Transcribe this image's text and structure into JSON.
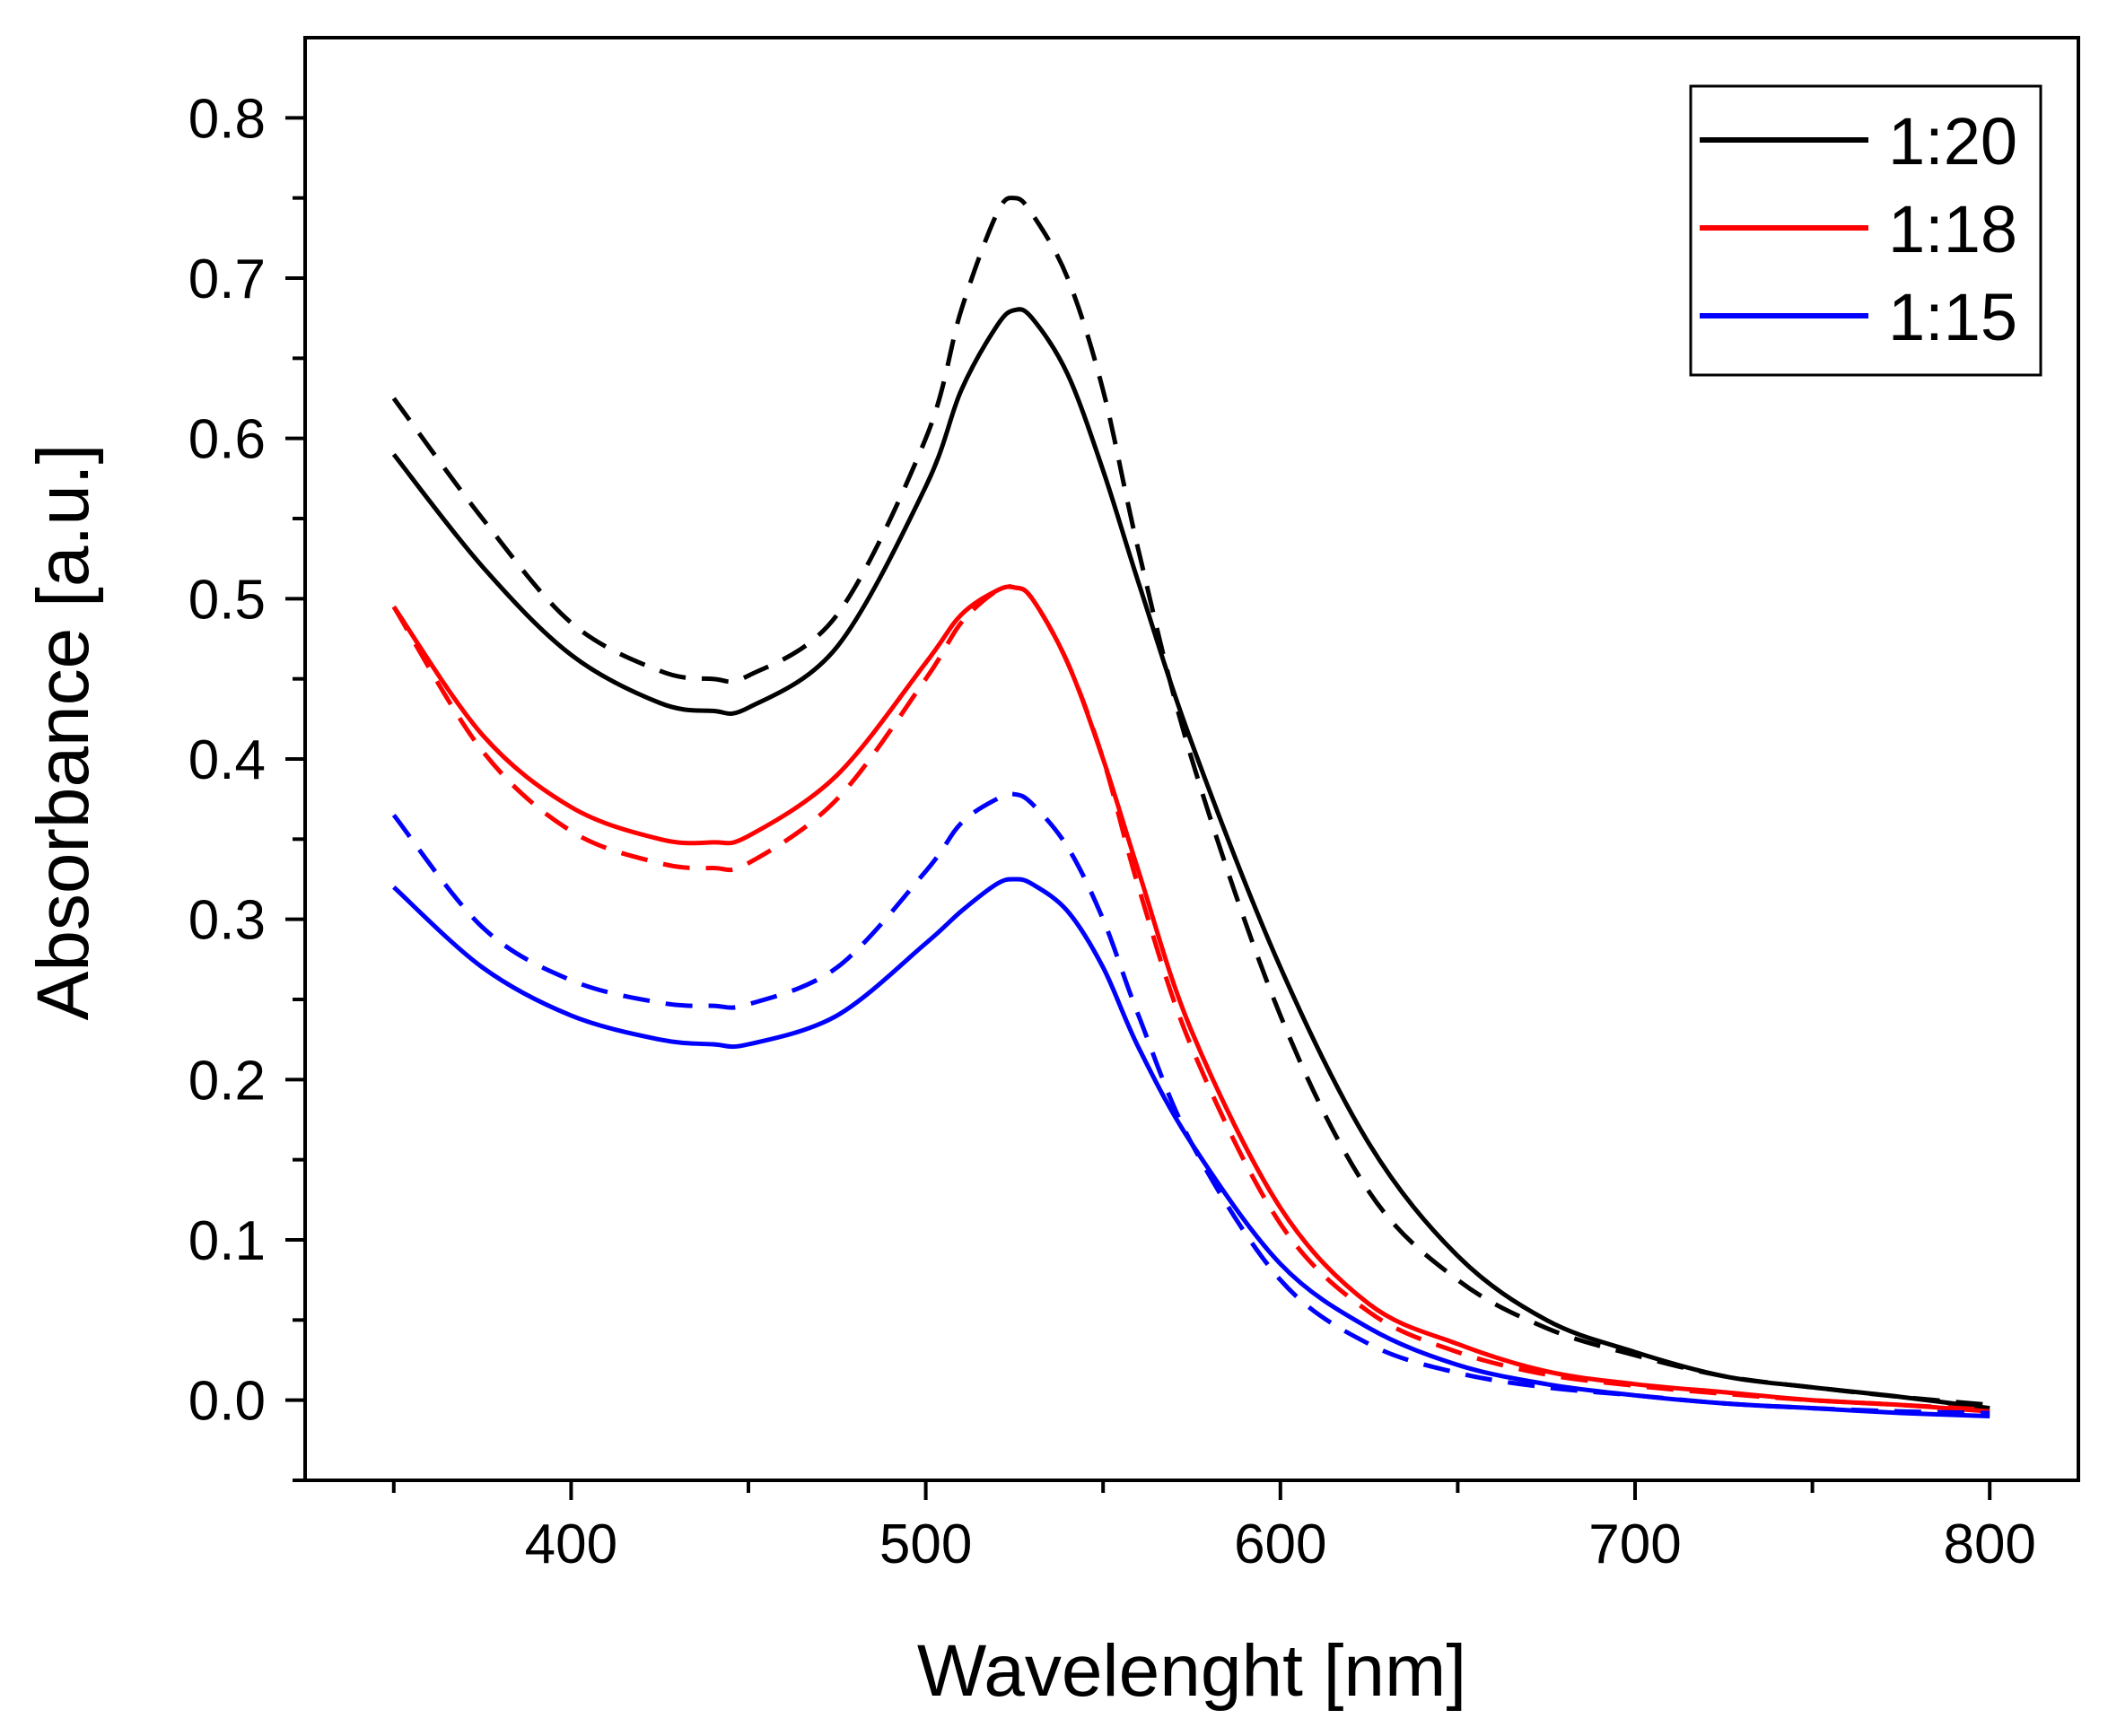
{
  "chart_data": {
    "type": "line",
    "title": "",
    "xlabel": "Wavelenght [nm]",
    "ylabel": "Absorbance [a.u.]",
    "xlim": [
      325,
      825
    ],
    "ylim": [
      -0.05,
      0.85
    ],
    "xticks": [
      400,
      500,
      600,
      700,
      800
    ],
    "xtick_labels": [
      "400",
      "500",
      "600",
      "700",
      "800"
    ],
    "x_minor_ticks": [
      350,
      450,
      550,
      650,
      750
    ],
    "yticks": [
      0.0,
      0.1,
      0.2,
      0.3,
      0.4,
      0.5,
      0.6,
      0.7,
      0.8
    ],
    "ytick_labels": [
      "0.0",
      "0.1",
      "0.2",
      "0.3",
      "0.4",
      "0.5",
      "0.6",
      "0.7",
      "0.8"
    ],
    "y_minor_ticks": [
      -0.05,
      0.05,
      0.15,
      0.25,
      0.35,
      0.45,
      0.55,
      0.65,
      0.75
    ],
    "grid": false,
    "legend_position": "top-right",
    "legend": [
      {
        "label": "1:20",
        "color": "#000000"
      },
      {
        "label": "1:18",
        "color": "#ff0000"
      },
      {
        "label": "1:15",
        "color": "#0000ff"
      }
    ],
    "x": [
      350,
      375,
      400,
      425,
      440,
      450,
      475,
      500,
      510,
      520,
      525,
      530,
      540,
      550,
      560,
      575,
      600,
      625,
      650,
      675,
      700,
      725,
      750,
      775,
      800
    ],
    "series": [
      {
        "name": "1:20",
        "style": "solid",
        "color": "#000000",
        "values": [
          0.59,
          0.52,
          0.465,
          0.435,
          0.43,
          0.432,
          0.47,
          0.57,
          0.63,
          0.67,
          0.68,
          0.675,
          0.64,
          0.58,
          0.51,
          0.41,
          0.27,
          0.16,
          0.09,
          0.05,
          0.03,
          0.015,
          0.008,
          0.002,
          -0.005
        ]
      },
      {
        "name": "1:20 (dashed)",
        "style": "dashed",
        "color": "#000000",
        "values": [
          0.625,
          0.55,
          0.485,
          0.455,
          0.45,
          0.452,
          0.49,
          0.6,
          0.68,
          0.74,
          0.75,
          0.74,
          0.7,
          0.63,
          0.53,
          0.4,
          0.24,
          0.13,
          0.075,
          0.045,
          0.028,
          0.015,
          0.008,
          0.002,
          -0.003
        ]
      },
      {
        "name": "1:18",
        "style": "solid",
        "color": "#ff0000",
        "values": [
          0.495,
          0.415,
          0.37,
          0.35,
          0.348,
          0.352,
          0.39,
          0.46,
          0.49,
          0.505,
          0.507,
          0.5,
          0.46,
          0.4,
          0.33,
          0.23,
          0.12,
          0.06,
          0.035,
          0.018,
          0.01,
          0.005,
          0.0,
          -0.003,
          -0.007
        ]
      },
      {
        "name": "1:18 (dashed)",
        "style": "dashed",
        "color": "#ff0000",
        "values": [
          0.495,
          0.405,
          0.355,
          0.335,
          0.332,
          0.335,
          0.375,
          0.45,
          0.485,
          0.505,
          0.507,
          0.5,
          0.46,
          0.4,
          0.32,
          0.22,
          0.11,
          0.055,
          0.03,
          0.016,
          0.009,
          0.004,
          0.0,
          -0.003,
          -0.006
        ]
      },
      {
        "name": "1:15",
        "style": "solid",
        "color": "#0000ff",
        "values": [
          0.32,
          0.27,
          0.24,
          0.225,
          0.222,
          0.222,
          0.24,
          0.285,
          0.305,
          0.322,
          0.325,
          0.322,
          0.305,
          0.27,
          0.22,
          0.16,
          0.085,
          0.045,
          0.022,
          0.01,
          0.003,
          -0.002,
          -0.005,
          -0.008,
          -0.01
        ]
      },
      {
        "name": "1:15 (dashed)",
        "style": "dashed",
        "color": "#0000ff",
        "values": [
          0.365,
          0.295,
          0.262,
          0.248,
          0.246,
          0.247,
          0.27,
          0.33,
          0.36,
          0.375,
          0.378,
          0.372,
          0.345,
          0.3,
          0.24,
          0.16,
          0.075,
          0.035,
          0.017,
          0.008,
          0.003,
          -0.002,
          -0.005,
          -0.007,
          -0.008
        ]
      }
    ]
  }
}
